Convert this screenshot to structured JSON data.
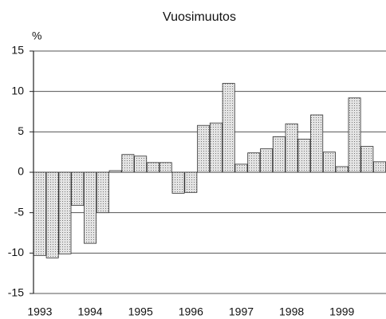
{
  "chart_data": {
    "type": "bar",
    "subtitle": "Vuosimuutos",
    "y_label": "%",
    "categories": [
      "1993",
      null,
      null,
      null,
      "1994",
      null,
      null,
      null,
      "1995",
      null,
      null,
      null,
      "1996",
      null,
      null,
      null,
      "1997",
      null,
      null,
      null,
      "1998",
      null,
      null,
      null,
      "1999",
      null,
      null,
      null
    ],
    "values": [
      -10.3,
      -10.6,
      -10.1,
      -4.1,
      -8.8,
      -5.0,
      0.2,
      2.2,
      2.0,
      1.2,
      1.2,
      -2.6,
      -2.5,
      5.8,
      6.1,
      11.0,
      1.0,
      2.4,
      2.9,
      4.4,
      6.0,
      4.1,
      7.1,
      2.5,
      0.7,
      9.2,
      3.2,
      1.3
    ],
    "color": "#cfcfcf",
    "ylim": [
      -15,
      15
    ],
    "yticks": [
      -15,
      -10,
      -5,
      0,
      5,
      10,
      15
    ],
    "grid": true
  }
}
